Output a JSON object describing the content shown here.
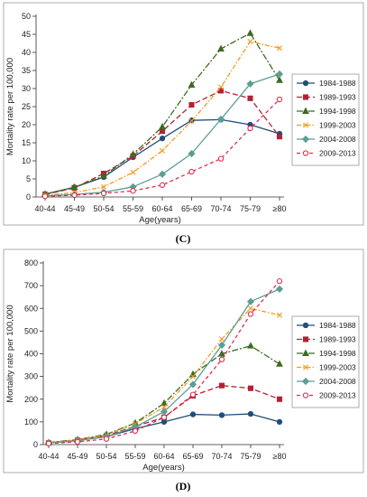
{
  "chart_data": [
    {
      "type": "line",
      "panel_label": "(C)",
      "xlabel": "Age(years)",
      "ylabel": "Mortality rate per 100,000",
      "categories": [
        "40-44",
        "45-49",
        "50-54",
        "55-59",
        "60-64",
        "65-69",
        "70-74",
        "75-79",
        "≥80"
      ],
      "ylim": [
        0,
        50
      ],
      "yticks": [
        "0",
        "5",
        "10",
        "15",
        "20",
        "25",
        "30",
        "35",
        "40",
        "45",
        "50"
      ],
      "legend_position": "right",
      "series": [
        {
          "name": "1984-1988",
          "color": "#1f4e79",
          "dash": "",
          "marker": "circle",
          "filled": true,
          "values": [
            0.8,
            2.7,
            5.5,
            11.0,
            16.2,
            21.2,
            21.4,
            20.0,
            17.5
          ]
        },
        {
          "name": "1989-1993",
          "color": "#b22234",
          "dash": "6,3",
          "marker": "square",
          "filled": true,
          "values": [
            0.7,
            2.5,
            6.5,
            11.3,
            18.2,
            25.5,
            29.4,
            27.3,
            16.7
          ]
        },
        {
          "name": "1994-1998",
          "color": "#3d6b22",
          "dash": "7,2,2,2",
          "marker": "triangle",
          "filled": true,
          "values": [
            0.8,
            2.7,
            5.8,
            11.8,
            19.4,
            31.0,
            41.0,
            45.3,
            32.3
          ]
        },
        {
          "name": "1999-2003",
          "color": "#f29a1f",
          "dash": "5,2,1.5,2",
          "marker": "x",
          "filled": false,
          "values": [
            0.5,
            1.2,
            2.8,
            6.8,
            12.8,
            21.0,
            30.4,
            43.0,
            41.2
          ]
        },
        {
          "name": "2004-2008",
          "color": "#5b9e92",
          "dash": "",
          "marker": "diamond",
          "filled": true,
          "values": [
            0.3,
            0.7,
            1.3,
            2.8,
            6.3,
            12.0,
            21.5,
            31.3,
            34.0
          ]
        },
        {
          "name": "2009-2013",
          "color": "#e0304e",
          "dash": "4,3",
          "marker": "circle",
          "filled": false,
          "values": [
            0.2,
            0.5,
            1.0,
            1.7,
            3.3,
            7.0,
            10.6,
            19.0,
            27.0
          ]
        }
      ]
    },
    {
      "type": "line",
      "panel_label": "(D)",
      "xlabel": "Age(years)",
      "ylabel": "Mortality rate per 100,000",
      "categories": [
        "40-44",
        "45-49",
        "50-54",
        "55-59",
        "60-64",
        "65-69",
        "70-74",
        "75-79",
        "≥80"
      ],
      "ylim": [
        0,
        800
      ],
      "yticks": [
        "0",
        "100",
        "200",
        "300",
        "400",
        "500",
        "600",
        "700",
        "800"
      ],
      "legend_position": "right",
      "series": [
        {
          "name": "1984-1988",
          "color": "#1f4e79",
          "dash": "",
          "marker": "circle",
          "filled": true,
          "values": [
            8,
            18,
            35,
            70,
            100,
            133,
            130,
            135,
            100
          ]
        },
        {
          "name": "1989-1993",
          "color": "#b22234",
          "dash": "6,3",
          "marker": "square",
          "filled": true,
          "values": [
            8,
            20,
            40,
            80,
            120,
            215,
            260,
            248,
            200
          ]
        },
        {
          "name": "1994-1998",
          "color": "#3d6b22",
          "dash": "7,2,2,2",
          "marker": "triangle",
          "filled": true,
          "values": [
            9,
            22,
            45,
            95,
            182,
            310,
            400,
            435,
            355
          ]
        },
        {
          "name": "1999-2003",
          "color": "#f29a1f",
          "dash": "5,2,1.5,2",
          "marker": "x",
          "filled": false,
          "values": [
            8,
            20,
            42,
            92,
            165,
            300,
            465,
            600,
            570
          ]
        },
        {
          "name": "2004-2008",
          "color": "#5b9e92",
          "dash": "",
          "marker": "diamond",
          "filled": true,
          "values": [
            7,
            17,
            35,
            78,
            145,
            265,
            438,
            630,
            685
          ]
        },
        {
          "name": "2009-2013",
          "color": "#e0304e",
          "dash": "4,3",
          "marker": "circle",
          "filled": false,
          "values": [
            5,
            12,
            25,
            60,
            120,
            220,
            375,
            575,
            720
          ]
        }
      ]
    }
  ]
}
